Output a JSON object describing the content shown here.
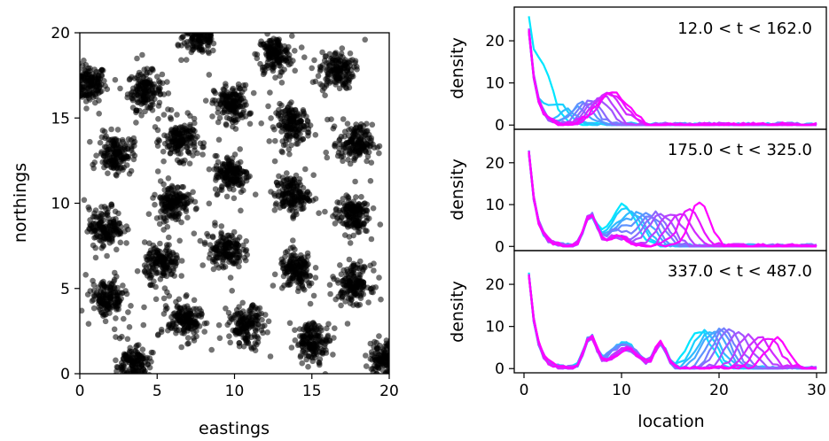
{
  "chart_data": [
    {
      "type": "scatter",
      "xlabel": "eastings",
      "ylabel": "northings",
      "xlim": [
        0,
        20
      ],
      "ylim": [
        0,
        20
      ],
      "x_ticks": [
        "0",
        "5",
        "10",
        "15",
        "20"
      ],
      "y_ticks": [
        "0",
        "5",
        "10",
        "15",
        "20"
      ],
      "point_color": "#000000",
      "grid": false,
      "clusters": [
        {
          "x": 0.6,
          "y": 17.0
        },
        {
          "x": 4.2,
          "y": 16.6
        },
        {
          "x": 7.8,
          "y": 19.8
        },
        {
          "x": 12.6,
          "y": 18.7
        },
        {
          "x": 16.6,
          "y": 17.8
        },
        {
          "x": 9.8,
          "y": 15.8
        },
        {
          "x": 13.8,
          "y": 14.6
        },
        {
          "x": 6.5,
          "y": 13.7
        },
        {
          "x": 2.3,
          "y": 12.9
        },
        {
          "x": 17.8,
          "y": 13.5
        },
        {
          "x": 9.8,
          "y": 11.7
        },
        {
          "x": 6.0,
          "y": 10.1
        },
        {
          "x": 13.7,
          "y": 10.5
        },
        {
          "x": 17.6,
          "y": 9.3
        },
        {
          "x": 1.7,
          "y": 8.6
        },
        {
          "x": 9.4,
          "y": 7.3
        },
        {
          "x": 5.3,
          "y": 6.5
        },
        {
          "x": 14.0,
          "y": 6.0
        },
        {
          "x": 17.7,
          "y": 5.3
        },
        {
          "x": 1.8,
          "y": 4.4
        },
        {
          "x": 6.8,
          "y": 3.1
        },
        {
          "x": 10.8,
          "y": 2.8
        },
        {
          "x": 15.1,
          "y": 1.9
        },
        {
          "x": 19.8,
          "y": 0.9
        },
        {
          "x": 3.4,
          "y": 0.5
        }
      ]
    },
    {
      "type": "line",
      "ylabel": "density",
      "annotation": "12.0 < t < 162.0",
      "xlim": [
        -1,
        31
      ],
      "ylim": [
        -1,
        28
      ],
      "y_ticks": [
        "0",
        "10",
        "20"
      ],
      "color_start": "#00e6ff",
      "color_end": "#ff00ff",
      "series_count": 12,
      "shared_x": "location",
      "peaks": [
        [
          2.0,
          11.5,
          1.0
        ],
        [
          3.5,
          5.0,
          1.0
        ],
        [
          4.5,
          3.5,
          1.0
        ],
        [
          5.5,
          4.0,
          1.0
        ],
        [
          6.0,
          5.0,
          1.0
        ],
        [
          6.5,
          5.5,
          1.0
        ],
        [
          7.0,
          6.0,
          1.0
        ],
        [
          7.5,
          6.5,
          1.2
        ],
        [
          8.0,
          7.0,
          1.2
        ],
        [
          8.5,
          7.5,
          1.5
        ],
        [
          9.0,
          7.5,
          1.5
        ],
        [
          9.0,
          8.0,
          1.6
        ]
      ]
    },
    {
      "type": "line",
      "ylabel": "density",
      "annotation": "175.0 < t < 325.0",
      "xlim": [
        -1,
        31
      ],
      "ylim": [
        -1,
        28
      ],
      "y_ticks": [
        "0",
        "10",
        "20"
      ],
      "color_start": "#00e6ff",
      "color_end": "#ff00ff",
      "series_count": 12,
      "shared_x": "location",
      "peaks": [
        [
          10.5,
          7.0,
          1.2
        ],
        [
          11.0,
          7.0,
          1.2
        ],
        [
          11.5,
          7.0,
          1.2
        ],
        [
          12.0,
          7.5,
          1.2
        ],
        [
          12.5,
          7.5,
          1.2
        ],
        [
          13.0,
          7.5,
          1.2
        ],
        [
          13.5,
          8.0,
          1.2
        ],
        [
          14.0,
          8.0,
          1.2
        ],
        [
          15.0,
          8.0,
          1.2
        ],
        [
          16.0,
          8.0,
          1.2
        ],
        [
          17.0,
          8.5,
          1.2
        ],
        [
          18.0,
          10.5,
          1.0
        ]
      ]
    },
    {
      "type": "line",
      "ylabel": "density",
      "annotation": "337.0 < t < 487.0",
      "xlim": [
        -1,
        31
      ],
      "ylim": [
        -1,
        28
      ],
      "x_ticks": [
        "0",
        "10",
        "20",
        "30"
      ],
      "xlabel": "location",
      "y_ticks": [
        "0",
        "10",
        "20"
      ],
      "color_start": "#00e6ff",
      "color_end": "#ff00ff",
      "series_count": 12,
      "peaks": [
        [
          18.0,
          9.0,
          1.2
        ],
        [
          18.5,
          9.0,
          1.2
        ],
        [
          19.0,
          9.0,
          1.2
        ],
        [
          19.5,
          9.0,
          1.2
        ],
        [
          20.0,
          9.0,
          1.2
        ],
        [
          20.5,
          9.0,
          1.2
        ],
        [
          21.0,
          9.0,
          1.2
        ],
        [
          22.0,
          8.5,
          1.2
        ],
        [
          23.0,
          8.0,
          1.2
        ],
        [
          24.0,
          7.5,
          1.2
        ],
        [
          25.0,
          7.5,
          1.2
        ],
        [
          26.0,
          7.0,
          1.2
        ]
      ]
    }
  ]
}
